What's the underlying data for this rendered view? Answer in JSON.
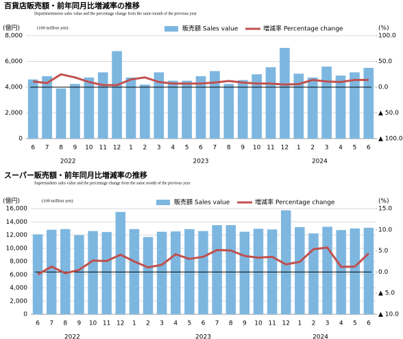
{
  "chart_data": [
    {
      "type": "bar_line",
      "title": "百貨店販売額・前年同月比増減率の推移",
      "subtitle": "Departmentstores sales value and the percentage change from the same month of the previous year",
      "y_label": "(億円)",
      "y_unit_label": "(100 million yen)",
      "y2_label": "(%)",
      "categories": [
        "6",
        "7",
        "8",
        "9",
        "10",
        "11",
        "12",
        "1",
        "2",
        "3",
        "4",
        "5",
        "6",
        "7",
        "8",
        "9",
        "10",
        "11",
        "12",
        "1",
        "2",
        "3",
        "4",
        "5",
        "6"
      ],
      "x_group_labels": [
        "2022",
        "2023",
        "2024"
      ],
      "series": [
        {
          "name": "販売額 Sales value",
          "color": "#7db7e0",
          "kind": "bar",
          "values": [
            4600,
            4850,
            3900,
            4250,
            4750,
            5150,
            6800,
            4750,
            4200,
            5150,
            4500,
            4500,
            4850,
            5250,
            4250,
            4550,
            5000,
            5550,
            7050,
            5050,
            4750,
            5600,
            4900,
            5150,
            5500
          ]
        },
        {
          "name": "増減率 Percentage change",
          "color": "#c0504d",
          "kind": "line",
          "axis": "y2",
          "values": [
            11,
            8,
            25,
            19,
            10,
            4,
            4,
            15,
            19,
            10,
            7,
            7,
            7,
            9,
            12,
            9,
            7,
            7,
            5,
            6,
            14,
            11,
            10,
            14,
            14
          ]
        }
      ],
      "ylim": [
        0,
        8000
      ],
      "yticks": [
        0,
        {
          "value": 2000,
          "label": "2,000"
        },
        {
          "value": 4000,
          "label": "4,000"
        },
        {
          "value": 6000,
          "label": "6,000"
        },
        {
          "value": 8000,
          "label": "8,000"
        }
      ],
      "y2lim": [
        -100,
        100
      ],
      "y2ticks": [
        {
          "value": -100,
          "label": "▲ 100.0"
        },
        {
          "value": -50,
          "label": "▲ 50.0"
        },
        {
          "value": 0,
          "label": "0.0"
        },
        {
          "value": 50,
          "label": "50.0"
        },
        {
          "value": 100,
          "label": "100.0"
        }
      ],
      "grid": true
    },
    {
      "type": "bar_line",
      "title": "スーパー販売額・前年同月比増減率の推移",
      "subtitle": "Supermarkets sales value and the percentage change from the same month of the previous year",
      "y_label": "(億円)",
      "y_unit_label": "(100 million yen)",
      "y2_label": "(%)",
      "categories": [
        "6",
        "7",
        "8",
        "9",
        "10",
        "11",
        "12",
        "1",
        "2",
        "3",
        "4",
        "5",
        "6",
        "7",
        "8",
        "9",
        "10",
        "11",
        "12",
        "1",
        "2",
        "3",
        "4",
        "5",
        "6"
      ],
      "x_group_labels": [
        "2022",
        "2023",
        "2024"
      ],
      "series": [
        {
          "name": "販売額 Sales value",
          "color": "#7db7e0",
          "kind": "bar",
          "values": [
            12100,
            12800,
            12900,
            12000,
            12600,
            12450,
            15500,
            12900,
            11700,
            12500,
            12550,
            12900,
            12600,
            13500,
            13500,
            12500,
            12950,
            12850,
            15750,
            13200,
            12250,
            13250,
            12750,
            13000,
            13100
          ]
        },
        {
          "name": "増減率 Percentage change",
          "color": "#c0504d",
          "kind": "line",
          "axis": "y2",
          "values": [
            -0.6,
            1.3,
            -0.3,
            0.5,
            2.7,
            2.6,
            4.1,
            2.5,
            1.1,
            1.7,
            4.2,
            3.1,
            3.6,
            5.2,
            5.1,
            3.8,
            3.4,
            3.6,
            1.8,
            2.4,
            5.4,
            5.8,
            1.2,
            1.3,
            4.4
          ]
        }
      ],
      "ylim": [
        0,
        16000
      ],
      "yticks": [
        0,
        {
          "value": 2000,
          "label": "2,000"
        },
        {
          "value": 4000,
          "label": "4,000"
        },
        {
          "value": 6000,
          "label": "6,000"
        },
        {
          "value": 8000,
          "label": "8,000"
        },
        {
          "value": 10000,
          "label": "10,000"
        },
        {
          "value": 12000,
          "label": "12,000"
        },
        {
          "value": 14000,
          "label": "14,000"
        },
        {
          "value": 16000,
          "label": "16,000"
        }
      ],
      "y2lim": [
        -10,
        15
      ],
      "y2ticks": [
        {
          "value": -10,
          "label": "▲ 10.0"
        },
        {
          "value": -5,
          "label": "▲ 5.0"
        },
        {
          "value": 0,
          "label": "0.0"
        },
        {
          "value": 5,
          "label": "5.0"
        },
        {
          "value": 10,
          "label": "10.0"
        },
        {
          "value": 15,
          "label": "15.0"
        }
      ],
      "grid": true
    }
  ]
}
